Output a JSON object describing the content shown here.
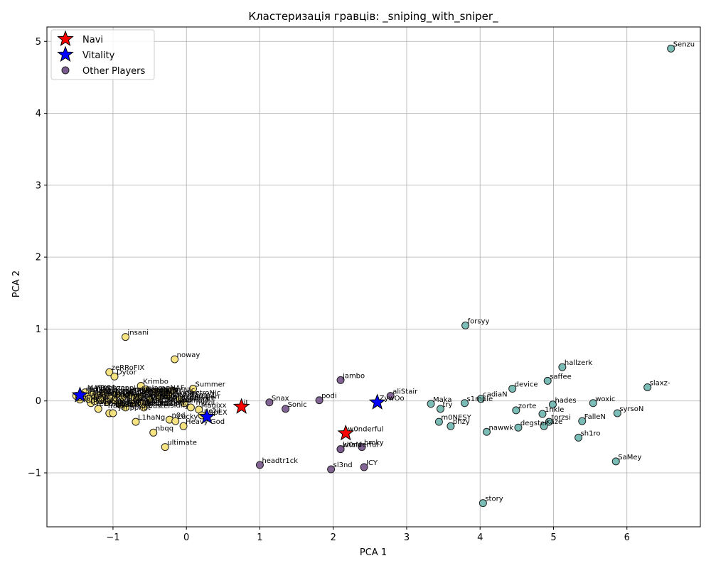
{
  "chart_data": {
    "type": "scatter",
    "title": "Кластеризація гравців: _sniping_with_sniper_",
    "xlabel": "PCA 1",
    "ylabel": "PCA 2",
    "xlim": [
      -1.9,
      7.0
    ],
    "ylim": [
      -1.75,
      5.2
    ],
    "xticks": [
      -1,
      0,
      1,
      2,
      3,
      4,
      5,
      6
    ],
    "yticks": [
      -1,
      0,
      1,
      2,
      3,
      4,
      5
    ],
    "grid": true,
    "legend_position": "top-left",
    "legend": [
      {
        "label": "Navi",
        "marker": "star",
        "color": "#ff0000"
      },
      {
        "label": "Vitality",
        "marker": "star",
        "color": "#0000ff"
      },
      {
        "label": "Other Players",
        "marker": "circle",
        "color": "#7b5c8f"
      }
    ],
    "clusters": [
      {
        "id": "purple",
        "color": "#7b5c8f"
      },
      {
        "id": "teal",
        "color": "#73b8b2"
      },
      {
        "id": "yellow",
        "color": "#f6e27a"
      }
    ],
    "points": [
      {
        "name": "Senzu",
        "x": 6.6,
        "y": 4.9,
        "cluster": "teal"
      },
      {
        "name": "forsyy",
        "x": 3.8,
        "y": 1.05,
        "cluster": "teal"
      },
      {
        "name": "hallzerk",
        "x": 5.12,
        "y": 0.47,
        "cluster": "teal"
      },
      {
        "name": "saffee",
        "x": 4.92,
        "y": 0.28,
        "cluster": "teal"
      },
      {
        "name": "slaxz-",
        "x": 6.28,
        "y": 0.19,
        "cluster": "teal"
      },
      {
        "name": "device",
        "x": 4.44,
        "y": 0.17,
        "cluster": "teal"
      },
      {
        "name": "cadiaN",
        "x": 4.01,
        "y": 0.03,
        "cluster": "teal"
      },
      {
        "name": "Maka",
        "x": 3.33,
        "y": -0.04,
        "cluster": "teal"
      },
      {
        "name": "s1mple",
        "x": 3.79,
        "y": -0.03,
        "cluster": "teal"
      },
      {
        "name": "hades",
        "x": 4.99,
        "y": -0.05,
        "cluster": "teal"
      },
      {
        "name": "woxic",
        "x": 5.54,
        "y": -0.03,
        "cluster": "teal"
      },
      {
        "name": "try",
        "x": 3.46,
        "y": -0.11,
        "cluster": "teal"
      },
      {
        "name": "zorte",
        "x": 4.49,
        "y": -0.13,
        "cluster": "teal"
      },
      {
        "name": "1nkle",
        "x": 4.85,
        "y": -0.18,
        "cluster": "teal"
      },
      {
        "name": "syrsoN",
        "x": 5.87,
        "y": -0.17,
        "cluster": "teal"
      },
      {
        "name": "m0NESY",
        "x": 3.44,
        "y": -0.29,
        "cluster": "teal"
      },
      {
        "name": "phzy",
        "x": 3.6,
        "y": -0.35,
        "cluster": "teal"
      },
      {
        "name": "FalleN",
        "x": 5.39,
        "y": -0.28,
        "cluster": "teal"
      },
      {
        "name": "torzsi",
        "x": 4.94,
        "y": -0.29,
        "cluster": "teal"
      },
      {
        "name": "degster",
        "x": 4.52,
        "y": -0.37,
        "cluster": "teal"
      },
      {
        "name": "kaze",
        "x": 4.87,
        "y": -0.35,
        "cluster": "teal"
      },
      {
        "name": "nawwk",
        "x": 4.09,
        "y": -0.43,
        "cluster": "teal"
      },
      {
        "name": "sh1ro",
        "x": 5.34,
        "y": -0.51,
        "cluster": "teal"
      },
      {
        "name": "SaMey",
        "x": 5.85,
        "y": -0.84,
        "cluster": "teal"
      },
      {
        "name": "story",
        "x": 4.04,
        "y": -1.42,
        "cluster": "teal"
      },
      {
        "name": "jambo",
        "x": 2.1,
        "y": 0.29,
        "cluster": "purple"
      },
      {
        "name": "aliStair",
        "x": 2.78,
        "y": 0.07,
        "cluster": "purple"
      },
      {
        "name": "podi",
        "x": 1.81,
        "y": 0.01,
        "cluster": "purple"
      },
      {
        "name": "Snax",
        "x": 1.13,
        "y": -0.02,
        "cluster": "purple"
      },
      {
        "name": "Sonic",
        "x": 1.35,
        "y": -0.11,
        "cluster": "purple"
      },
      {
        "name": "w0nderful",
        "x": 2.1,
        "y": -0.67,
        "cluster": "purple"
      },
      {
        "name": "broky",
        "x": 2.39,
        "y": -0.64,
        "cluster": "purple"
      },
      {
        "name": "khaN",
        "x": 2.1,
        "y": -0.67,
        "cluster": "purple"
      },
      {
        "name": "headtr1ck",
        "x": 1.0,
        "y": -0.89,
        "cluster": "purple"
      },
      {
        "name": "sl3nd",
        "x": 1.97,
        "y": -0.95,
        "cluster": "purple"
      },
      {
        "name": "ICY",
        "x": 2.42,
        "y": -0.92,
        "cluster": "purple"
      },
      {
        "name": "insani",
        "x": -0.83,
        "y": 0.89,
        "cluster": "yellow"
      },
      {
        "name": "noway",
        "x": -0.16,
        "y": 0.58,
        "cluster": "yellow"
      },
      {
        "name": "zeRRoFIX",
        "x": -1.05,
        "y": 0.4,
        "cluster": "yellow"
      },
      {
        "name": "Dytor",
        "x": -0.98,
        "y": 0.34,
        "cluster": "yellow"
      },
      {
        "name": "Krimbo",
        "x": -0.62,
        "y": 0.21,
        "cluster": "yellow"
      },
      {
        "name": "Summer",
        "x": 0.09,
        "y": 0.17,
        "cluster": "yellow"
      },
      {
        "name": "MATYS",
        "x": -1.38,
        "y": 0.12,
        "cluster": "yellow"
      },
      {
        "name": "",
        "x": -0.55,
        "y": 0.16,
        "cluster": "yellow"
      },
      {
        "name": "",
        "x": -0.42,
        "y": 0.13,
        "cluster": "yellow"
      },
      {
        "name": "",
        "x": -0.3,
        "y": 0.11,
        "cluster": "yellow"
      },
      {
        "name": "",
        "x": -0.2,
        "y": 0.14,
        "cluster": "yellow"
      },
      {
        "name": "",
        "x": -0.09,
        "y": 0.02,
        "cluster": "yellow"
      },
      {
        "name": "",
        "x": -0.03,
        "y": -0.03,
        "cluster": "yellow"
      },
      {
        "name": "",
        "x": 0.06,
        "y": -0.09,
        "cluster": "yellow"
      },
      {
        "name": "Magixx",
        "x": 0.17,
        "y": -0.12,
        "cluster": "yellow"
      },
      {
        "name": "nezil",
        "x": 0.21,
        "y": -0.2,
        "cluster": "yellow"
      },
      {
        "name": "L1haNg",
        "x": -0.69,
        "y": -0.29,
        "cluster": "yellow"
      },
      {
        "name": "n0d",
        "x": -0.23,
        "y": -0.26,
        "cluster": "yellow"
      },
      {
        "name": "Lucky",
        "x": -0.15,
        "y": -0.28,
        "cluster": "yellow"
      },
      {
        "name": "Heavy God",
        "x": -0.04,
        "y": -0.35,
        "cluster": "yellow"
      },
      {
        "name": "nbqq",
        "x": -0.45,
        "y": -0.44,
        "cluster": "yellow"
      },
      {
        "name": "ultimate",
        "x": -0.29,
        "y": -0.64,
        "cluster": "yellow"
      },
      {
        "name": "",
        "x": -1.05,
        "y": -0.17,
        "cluster": "yellow"
      },
      {
        "name": "",
        "x": -1.0,
        "y": -0.17,
        "cluster": "yellow"
      },
      {
        "name": "",
        "x": -1.2,
        "y": -0.11,
        "cluster": "yellow"
      },
      {
        "name": "",
        "x": -0.83,
        "y": -0.09,
        "cluster": "yellow"
      },
      {
        "name": "",
        "x": -0.58,
        "y": -0.09,
        "cluster": "yellow"
      },
      {
        "name": "",
        "x": -0.72,
        "y": -0.02,
        "cluster": "yellow"
      },
      {
        "name": "",
        "x": -0.9,
        "y": -0.05,
        "cluster": "yellow"
      },
      {
        "name": "",
        "x": -1.3,
        "y": -0.03,
        "cluster": "yellow"
      },
      {
        "name": "",
        "x": -1.45,
        "y": 0.02,
        "cluster": "yellow"
      },
      {
        "name": "",
        "x": -1.5,
        "y": 0.07,
        "cluster": "yellow"
      },
      {
        "name": "",
        "x": -1.42,
        "y": 0.08,
        "cluster": "yellow"
      },
      {
        "name": "",
        "x": -1.36,
        "y": 0.06,
        "cluster": "yellow"
      },
      {
        "name": "",
        "x": -1.28,
        "y": 0.09,
        "cluster": "yellow"
      },
      {
        "name": "",
        "x": -1.2,
        "y": 0.07,
        "cluster": "yellow"
      },
      {
        "name": "",
        "x": -1.12,
        "y": 0.1,
        "cluster": "yellow"
      },
      {
        "name": "",
        "x": -1.05,
        "y": 0.06,
        "cluster": "yellow"
      },
      {
        "name": "",
        "x": -0.95,
        "y": 0.09,
        "cluster": "yellow"
      },
      {
        "name": "",
        "x": -0.87,
        "y": 0.05,
        "cluster": "yellow"
      },
      {
        "name": "",
        "x": -0.78,
        "y": 0.08,
        "cluster": "yellow"
      },
      {
        "name": "",
        "x": -0.7,
        "y": 0.04,
        "cluster": "yellow"
      },
      {
        "name": "",
        "x": -1.46,
        "y": 0.05,
        "cluster": "yellow"
      },
      {
        "name": "",
        "x": -1.33,
        "y": 0.03,
        "cluster": "yellow"
      },
      {
        "name": "",
        "x": -1.25,
        "y": 0.0,
        "cluster": "yellow"
      },
      {
        "name": "",
        "x": -1.16,
        "y": 0.02,
        "cluster": "yellow"
      },
      {
        "name": "",
        "x": -1.08,
        "y": -0.01,
        "cluster": "yellow"
      },
      {
        "name": "",
        "x": -0.98,
        "y": 0.01,
        "cluster": "yellow"
      },
      {
        "name": "",
        "x": -0.63,
        "y": 0.06,
        "cluster": "yellow"
      },
      {
        "name": "",
        "x": -0.5,
        "y": 0.02,
        "cluster": "yellow"
      },
      {
        "name": "",
        "x": -0.38,
        "y": 0.05,
        "cluster": "yellow"
      },
      {
        "name": "",
        "x": -0.25,
        "y": 0.08,
        "cluster": "yellow"
      },
      {
        "name": "",
        "x": -0.6,
        "y": -0.04,
        "cluster": "yellow"
      }
    ],
    "highlighted": [
      {
        "name": "Navi",
        "team": "Navi",
        "x": 0.75,
        "y": -0.08,
        "color": "#ff0000"
      },
      {
        "name": "Navi",
        "team": "Navi",
        "x": 2.17,
        "y": -0.45,
        "color": "#ff0000"
      },
      {
        "name": "Vitality",
        "team": "Vitality",
        "x": 0.28,
        "y": -0.22,
        "color": "#0000ff"
      },
      {
        "name": "Vitality",
        "team": "Vitality",
        "x": 2.6,
        "y": -0.02,
        "color": "#0000ff"
      },
      {
        "name": "Vitality",
        "team": "Vitality",
        "x": -1.45,
        "y": 0.08,
        "color": "#0000ff"
      }
    ],
    "cluster_labels": [
      {
        "text": "ZywOo",
        "x": 2.6,
        "y": -0.02
      },
      {
        "text": "jL",
        "x": 0.75,
        "y": -0.08
      },
      {
        "text": "w0nderful",
        "x": 2.17,
        "y": -0.45
      },
      {
        "text": "apEX",
        "x": 0.28,
        "y": -0.22
      },
      {
        "text": "Jame",
        "x": -0.5,
        "y": 0.12
      },
      {
        "text": "electroNic",
        "x": -0.4,
        "y": 0.09
      },
      {
        "text": "b1t",
        "x": -0.3,
        "y": 0.06
      },
      {
        "text": "flameZ",
        "x": 0.02,
        "y": 0.02
      },
      {
        "text": "spinx",
        "x": 0.02,
        "y": -0.02
      },
      {
        "text": "mezii",
        "x": 0.1,
        "y": -0.08
      },
      {
        "text": "Aleksib",
        "x": -0.3,
        "y": -0.05
      },
      {
        "text": "iM",
        "x": -0.2,
        "y": -0.1
      },
      {
        "text": "siuhy",
        "x": -0.25,
        "y": -0.12
      },
      {
        "text": "r0bbi",
        "x": -1.35,
        "y": 0.05
      },
      {
        "text": "dexter",
        "x": -0.6,
        "y": -0.08
      },
      {
        "text": "Boombl4",
        "x": -1.0,
        "y": 0.02
      },
      {
        "text": "Perfecto",
        "x": -0.75,
        "y": -0.05
      },
      {
        "text": "rain",
        "x": -1.15,
        "y": 0.09
      },
      {
        "text": "karrigan",
        "x": 0.02,
        "y": 0.0
      },
      {
        "text": "Twistzz",
        "x": -0.9,
        "y": 0.06
      },
      {
        "text": "ropz",
        "x": -0.8,
        "y": 0.03
      },
      {
        "text": "NAF",
        "x": -1.25,
        "y": 0.11
      },
      {
        "text": "EliGE",
        "x": -0.85,
        "y": -0.02
      },
      {
        "text": "Brollan",
        "x": -0.55,
        "y": -0.01
      },
      {
        "text": "Snappi",
        "x": -1.05,
        "y": 0.12
      },
      {
        "text": "HooXi",
        "x": -1.3,
        "y": 0.07
      },
      {
        "text": "dupreeh",
        "x": -0.6,
        "y": 0.07
      },
      {
        "text": "Xyp9x",
        "x": -0.95,
        "y": -0.06
      },
      {
        "text": "gla1ve",
        "x": -1.0,
        "y": -0.09
      },
      {
        "text": "device",
        "x": 0.05,
        "y": -0.02
      },
      {
        "text": "Magisk",
        "x": -0.45,
        "y": 0.04
      },
      {
        "text": "blameF",
        "x": -0.7,
        "y": 0.0
      },
      {
        "text": "k0nfig",
        "x": -1.1,
        "y": 0.04
      },
      {
        "text": "NiKo",
        "x": -0.35,
        "y": 0.1
      },
      {
        "text": "huNter-",
        "x": -0.25,
        "y": 0.02
      },
      {
        "text": "nexa",
        "x": -1.4,
        "y": 0.1
      },
      {
        "text": "Stewie2K",
        "x": -0.9,
        "y": -0.1
      },
      {
        "text": "jks",
        "x": -1.2,
        "y": -0.05
      },
      {
        "text": "Ax1Le",
        "x": -0.15,
        "y": 0.05
      },
      {
        "text": "sh1ro",
        "x": -0.2,
        "y": -0.01
      },
      {
        "text": "Hobbit",
        "x": -0.5,
        "y": -0.05
      },
      {
        "text": "Perfecto",
        "x": -1.3,
        "y": -0.07
      },
      {
        "text": "YEKINDAR",
        "x": -0.65,
        "y": 0.09
      },
      {
        "text": "Qikert",
        "x": -0.8,
        "y": -0.12
      },
      {
        "text": "buster",
        "x": -0.55,
        "y": -0.13
      },
      {
        "text": "frozen",
        "x": -1.1,
        "y": -0.13
      },
      {
        "text": "xertioN",
        "x": -0.4,
        "y": -0.08
      },
      {
        "text": "torzsi",
        "x": -1.0,
        "y": 0.08
      },
      {
        "text": "Jimpphat",
        "x": -0.95,
        "y": -0.15
      },
      {
        "text": "Brehze",
        "x": -1.2,
        "y": 0.12
      },
      {
        "text": "Ethan",
        "x": -1.15,
        "y": -0.1
      },
      {
        "text": "TACO",
        "x": -1.35,
        "y": -0.02
      },
      {
        "text": "fer",
        "x": -1.25,
        "y": -0.1
      },
      {
        "text": "coldzera",
        "x": -0.75,
        "y": 0.1
      },
      {
        "text": "kennyS",
        "x": -0.85,
        "y": 0.1
      },
      {
        "text": "shox",
        "x": -0.45,
        "y": -0.1
      },
      {
        "text": "ZywOo",
        "x": -0.35,
        "y": 0.0
      },
      {
        "text": "RpK",
        "x": -1.4,
        "y": -0.05
      },
      {
        "text": "misutaaa",
        "x": -0.6,
        "y": -0.1
      },
      {
        "text": "apEX",
        "x": -1.45,
        "y": 0.0
      },
      {
        "text": "Kyojin",
        "x": -1.05,
        "y": -0.04
      },
      {
        "text": "flamie",
        "x": -0.7,
        "y": -0.08
      },
      {
        "text": "Boombl4",
        "x": -0.15,
        "y": -0.05
      },
      {
        "text": "electroNic",
        "x": -0.05,
        "y": 0.05
      },
      {
        "text": "Perfecto",
        "x": -1.2,
        "y": 0.02
      },
      {
        "text": "s1mple",
        "x": -0.9,
        "y": 0.01
      },
      {
        "text": "KRIMZ",
        "x": -0.8,
        "y": 0.07
      },
      {
        "text": "ropz",
        "x": -1.1,
        "y": -0.07
      },
      {
        "text": "rain",
        "x": -0.65,
        "y": -0.03
      },
      {
        "text": "broky",
        "x": -0.5,
        "y": 0.08
      },
      {
        "text": "Twistzz",
        "x": -0.3,
        "y": -0.04
      },
      {
        "text": "karrigan",
        "x": -1.3,
        "y": 0.0
      },
      {
        "text": "NAF",
        "x": -0.25,
        "y": 0.12
      },
      {
        "text": "EliGE",
        "x": -1.0,
        "y": -0.11
      },
      {
        "text": "Jame",
        "x": -0.4,
        "y": 0.0
      },
      {
        "text": "b1t",
        "x": -1.35,
        "y": 0.1
      },
      {
        "text": "Boombl4",
        "x": -0.85,
        "y": -0.07
      },
      {
        "text": "Perfecto",
        "x": -1.15,
        "y": 0.06
      },
      {
        "text": "Ax1Le",
        "x": -0.7,
        "y": 0.06
      },
      {
        "text": "sh1ro",
        "x": -0.55,
        "y": 0.04
      },
      {
        "text": "nafany",
        "x": -0.6,
        "y": 0.01
      },
      {
        "text": "Hobbit",
        "x": -0.45,
        "y": 0.07
      },
      {
        "text": "interz",
        "x": -1.25,
        "y": 0.04
      },
      {
        "text": "ICY",
        "x": -0.95,
        "y": 0.04
      }
    ],
    "labeled_points_visible": [
      "Senzu",
      "forsyy",
      "hallzerk",
      "saffee",
      "slaxz-",
      "device",
      "cadiaN",
      "Maka",
      "s1mple",
      "hades",
      "woxic",
      "try",
      "zorte",
      "1nkle",
      "syrsoN",
      "m0NESY",
      "phzy",
      "FalleN",
      "torzsi",
      "degster",
      "kaze",
      "nawwk",
      "sh1ro",
      "SaMey",
      "story",
      "jambo",
      "aliStair",
      "podi",
      "Snax",
      "Sonic",
      "w0nderful",
      "broky",
      "khaN",
      "headtr1ck",
      "sl3nd",
      "ICY",
      "insani",
      "noway",
      "zeRRoFIX",
      "Dytor",
      "Krimbo",
      "Summer",
      "MATYS",
      "Magixx",
      "nezil",
      "L1haNg",
      "n0d",
      "Lucky",
      "Heavy God",
      "nbqq",
      "ultimate",
      "ZywOo",
      "jL"
    ]
  }
}
